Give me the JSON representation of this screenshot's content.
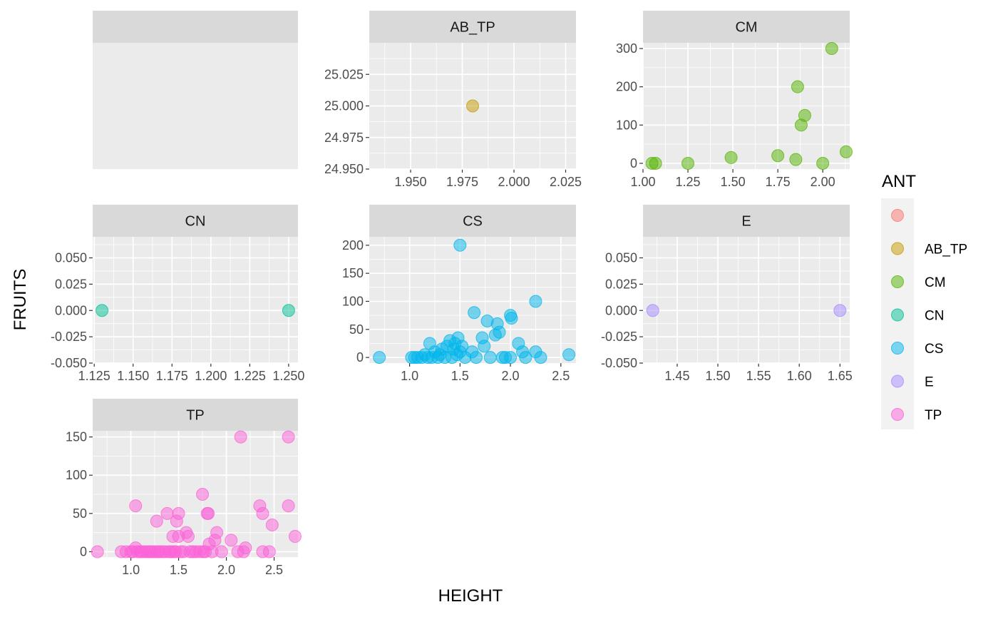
{
  "chart_data": {
    "type": "scatter",
    "xlabel": "HEIGHT",
    "ylabel": "FRUITS",
    "grid": true,
    "legend": {
      "title": "ANT",
      "position": "right",
      "entries": [
        {
          "label": "",
          "color": "#F8766D"
        },
        {
          "label": "AB_TP",
          "color": "#C49A00"
        },
        {
          "label": "CM",
          "color": "#53B400"
        },
        {
          "label": "CN",
          "color": "#00C094"
        },
        {
          "label": "CS",
          "color": "#00B6EB"
        },
        {
          "label": "E",
          "color": "#A58AFF"
        },
        {
          "label": "TP",
          "color": "#FB61D7"
        }
      ]
    },
    "panels": [
      {
        "strip": "",
        "color": "#F8766D",
        "empty": true,
        "points": []
      },
      {
        "strip": "AB_TP",
        "color": "#C49A00",
        "xlim": [
          1.93,
          2.03
        ],
        "ylim": [
          24.95,
          25.05
        ],
        "xticks": [
          1.95,
          1.975,
          2.0,
          2.025
        ],
        "xtick_labels": [
          "1.950",
          "1.975",
          "2.000",
          "2.025"
        ],
        "yticks": [
          24.95,
          24.975,
          25.0,
          25.025
        ],
        "ytick_labels": [
          "24.950",
          "24.975",
          "25.000",
          "25.025"
        ],
        "points": [
          [
            1.98,
            25.0
          ]
        ]
      },
      {
        "strip": "CM",
        "color": "#53B400",
        "xlim": [
          1.0,
          2.15
        ],
        "ylim": [
          -15,
          315
        ],
        "xticks": [
          1.0,
          1.25,
          1.5,
          1.75,
          2.0
        ],
        "xtick_labels": [
          "1.00",
          "1.25",
          "1.50",
          "1.75",
          "2.00"
        ],
        "yticks": [
          0,
          100,
          200,
          300
        ],
        "ytick_labels": [
          "0",
          "100",
          "200",
          "300"
        ],
        "points": [
          [
            1.05,
            0
          ],
          [
            1.07,
            0
          ],
          [
            1.25,
            0
          ],
          [
            1.49,
            15
          ],
          [
            1.75,
            20
          ],
          [
            1.85,
            10
          ],
          [
            1.86,
            200
          ],
          [
            1.88,
            100
          ],
          [
            1.9,
            125
          ],
          [
            2.0,
            0
          ],
          [
            2.05,
            300
          ],
          [
            2.13,
            30
          ]
        ]
      },
      {
        "strip": "CN",
        "color": "#00C094",
        "xlim": [
          1.124,
          1.256
        ],
        "ylim": [
          -0.05,
          0.07
        ],
        "xticks": [
          1.125,
          1.15,
          1.175,
          1.2,
          1.225,
          1.25
        ],
        "xtick_labels": [
          "1.125",
          "1.150",
          "1.175",
          "1.200",
          "1.225",
          "1.250"
        ],
        "yticks": [
          -0.05,
          -0.025,
          0.0,
          0.025,
          0.05
        ],
        "ytick_labels": [
          "-0.050",
          "-0.025",
          "0.000",
          "0.025",
          "0.050"
        ],
        "points": [
          [
            1.13,
            0
          ],
          [
            1.25,
            0
          ]
        ]
      },
      {
        "strip": "CS",
        "color": "#00B6EB",
        "xlim": [
          0.6,
          2.65
        ],
        "ylim": [
          -10,
          215
        ],
        "xticks": [
          1.0,
          1.5,
          2.0,
          2.5
        ],
        "xtick_labels": [
          "1.0",
          "1.5",
          "2.0",
          "2.5"
        ],
        "yticks": [
          0,
          50,
          100,
          150,
          200
        ],
        "ytick_labels": [
          "0",
          "50",
          "100",
          "150",
          "200"
        ],
        "points": [
          [
            0.7,
            0
          ],
          [
            1.02,
            0
          ],
          [
            1.05,
            0
          ],
          [
            1.08,
            0
          ],
          [
            1.12,
            0
          ],
          [
            1.15,
            5
          ],
          [
            1.18,
            0
          ],
          [
            1.2,
            25
          ],
          [
            1.22,
            0
          ],
          [
            1.25,
            10
          ],
          [
            1.28,
            0
          ],
          [
            1.3,
            5
          ],
          [
            1.32,
            15
          ],
          [
            1.35,
            0
          ],
          [
            1.37,
            20
          ],
          [
            1.4,
            30
          ],
          [
            1.42,
            0
          ],
          [
            1.44,
            15
          ],
          [
            1.45,
            25
          ],
          [
            1.47,
            5
          ],
          [
            1.48,
            35
          ],
          [
            1.5,
            200
          ],
          [
            1.5,
            10
          ],
          [
            1.52,
            20
          ],
          [
            1.55,
            0
          ],
          [
            1.62,
            10
          ],
          [
            1.64,
            80
          ],
          [
            1.66,
            0
          ],
          [
            1.72,
            35
          ],
          [
            1.74,
            20
          ],
          [
            1.77,
            65
          ],
          [
            1.8,
            0
          ],
          [
            1.85,
            40
          ],
          [
            1.87,
            60
          ],
          [
            1.89,
            45
          ],
          [
            1.92,
            0
          ],
          [
            1.95,
            0
          ],
          [
            2.0,
            75
          ],
          [
            2.01,
            70
          ],
          [
            2.0,
            0
          ],
          [
            2.08,
            25
          ],
          [
            2.12,
            10
          ],
          [
            2.15,
            0
          ],
          [
            2.25,
            100
          ],
          [
            2.25,
            10
          ],
          [
            2.3,
            0
          ],
          [
            2.58,
            5
          ]
        ]
      },
      {
        "strip": "E",
        "color": "#A58AFF",
        "xlim": [
          1.408,
          1.662
        ],
        "ylim": [
          -0.05,
          0.07
        ],
        "xticks": [
          1.45,
          1.5,
          1.55,
          1.6,
          1.65
        ],
        "xtick_labels": [
          "1.45",
          "1.50",
          "1.55",
          "1.60",
          "1.65"
        ],
        "yticks": [
          -0.05,
          -0.025,
          0.0,
          0.025,
          0.05
        ],
        "ytick_labels": [
          "-0.050",
          "-0.025",
          "0.000",
          "0.025",
          "0.050"
        ],
        "points": [
          [
            1.42,
            0
          ],
          [
            1.65,
            0
          ]
        ]
      },
      {
        "strip": "TP",
        "color": "#FB61D7",
        "xlim": [
          0.6,
          2.75
        ],
        "ylim": [
          -7,
          158
        ],
        "xticks": [
          1.0,
          1.5,
          2.0,
          2.5
        ],
        "xtick_labels": [
          "1.0",
          "1.5",
          "2.0",
          "2.5"
        ],
        "yticks": [
          0,
          50,
          100,
          150
        ],
        "ytick_labels": [
          "0",
          "50",
          "100",
          "150"
        ],
        "points": [
          [
            0.65,
            0
          ],
          [
            0.9,
            0
          ],
          [
            0.95,
            0
          ],
          [
            1.0,
            0
          ],
          [
            1.02,
            0
          ],
          [
            1.05,
            5
          ],
          [
            1.05,
            60
          ],
          [
            1.07,
            0
          ],
          [
            1.1,
            0
          ],
          [
            1.12,
            0
          ],
          [
            1.15,
            0
          ],
          [
            1.18,
            0
          ],
          [
            1.2,
            0
          ],
          [
            1.22,
            0
          ],
          [
            1.25,
            0
          ],
          [
            1.27,
            40
          ],
          [
            1.28,
            0
          ],
          [
            1.3,
            0
          ],
          [
            1.33,
            0
          ],
          [
            1.36,
            0
          ],
          [
            1.38,
            50
          ],
          [
            1.4,
            0
          ],
          [
            1.42,
            0
          ],
          [
            1.44,
            20
          ],
          [
            1.45,
            0
          ],
          [
            1.47,
            0
          ],
          [
            1.48,
            40
          ],
          [
            1.5,
            50
          ],
          [
            1.5,
            20
          ],
          [
            1.52,
            0
          ],
          [
            1.55,
            0
          ],
          [
            1.58,
            25
          ],
          [
            1.6,
            20
          ],
          [
            1.62,
            0
          ],
          [
            1.65,
            0
          ],
          [
            1.68,
            0
          ],
          [
            1.72,
            0
          ],
          [
            1.75,
            75
          ],
          [
            1.76,
            0
          ],
          [
            1.78,
            0
          ],
          [
            1.8,
            50
          ],
          [
            1.81,
            50
          ],
          [
            1.82,
            10
          ],
          [
            1.85,
            0
          ],
          [
            1.88,
            15
          ],
          [
            1.9,
            25
          ],
          [
            1.95,
            0
          ],
          [
            2.05,
            15
          ],
          [
            2.12,
            0
          ],
          [
            2.15,
            150
          ],
          [
            2.18,
            0
          ],
          [
            2.2,
            5
          ],
          [
            2.35,
            60
          ],
          [
            2.38,
            50
          ],
          [
            2.38,
            0
          ],
          [
            2.45,
            0
          ],
          [
            2.48,
            35
          ],
          [
            2.65,
            150
          ],
          [
            2.65,
            60
          ],
          [
            2.72,
            20
          ]
        ]
      }
    ]
  }
}
